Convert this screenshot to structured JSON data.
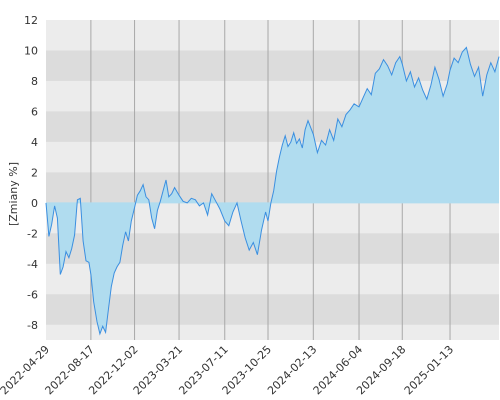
{
  "chart_data": {
    "type": "area",
    "title": "",
    "xlabel": "",
    "ylabel": "[Zmiany %]",
    "ylim": [
      -9,
      12
    ],
    "y_ticks": [
      -8,
      -6,
      -4,
      -2,
      0,
      2,
      4,
      6,
      8,
      10,
      12
    ],
    "x_tick_labels": [
      "2022-04-29",
      "2022-08-17",
      "2022-12-02",
      "2023-03-21",
      "2023-07-11",
      "2023-10-25",
      "2024-02-13",
      "2024-06-04",
      "2024-09-18",
      "2025-01-13"
    ],
    "grid": "vertical lines at x ticks, alternating horizontal bands",
    "colors": {
      "line": "#3b8fe0",
      "fill": "#b0dcef",
      "band_dark": "#dcdcdc",
      "band_light": "#ececec",
      "grid": "#a8a8a8"
    },
    "series": [
      {
        "x": [
          "2022-04-29",
          "2022-05-06",
          "2022-05-13",
          "2022-05-20",
          "2022-05-27",
          "2022-06-03",
          "2022-06-10",
          "2022-06-17",
          "2022-06-24",
          "2022-07-01",
          "2022-07-08",
          "2022-07-15",
          "2022-07-22",
          "2022-07-29",
          "2022-08-05",
          "2022-08-12",
          "2022-08-17",
          "2022-08-24",
          "2022-09-01",
          "2022-09-08",
          "2022-09-15",
          "2022-09-22",
          "2022-09-29",
          "2022-10-06",
          "2022-10-13",
          "2022-10-20",
          "2022-10-27",
          "2022-11-03",
          "2022-11-10",
          "2022-11-17",
          "2022-11-24",
          "2022-12-02",
          "2022-12-09",
          "2022-12-16",
          "2022-12-23",
          "2022-12-30",
          "2023-01-06",
          "2023-01-13",
          "2023-01-20",
          "2023-01-27",
          "2023-02-03",
          "2023-02-10",
          "2023-02-17",
          "2023-02-24",
          "2023-03-03",
          "2023-03-10",
          "2023-03-21",
          "2023-03-31",
          "2023-04-10",
          "2023-04-20",
          "2023-04-30",
          "2023-05-10",
          "2023-05-20",
          "2023-05-30",
          "2023-06-09",
          "2023-06-19",
          "2023-06-29",
          "2023-07-11",
          "2023-07-21",
          "2023-07-31",
          "2023-08-10",
          "2023-08-20",
          "2023-08-30",
          "2023-09-09",
          "2023-09-19",
          "2023-09-29",
          "2023-10-09",
          "2023-10-19",
          "2023-10-25",
          "2023-11-01",
          "2023-11-08",
          "2023-11-15",
          "2023-11-22",
          "2023-11-29",
          "2023-12-06",
          "2023-12-13",
          "2023-12-20",
          "2023-12-27",
          "2024-01-03",
          "2024-01-10",
          "2024-01-17",
          "2024-01-24",
          "2024-01-31",
          "2024-02-13",
          "2024-02-23",
          "2024-03-04",
          "2024-03-14",
          "2024-03-24",
          "2024-04-03",
          "2024-04-13",
          "2024-04-23",
          "2024-05-03",
          "2024-05-13",
          "2024-05-23",
          "2024-06-04",
          "2024-06-14",
          "2024-06-24",
          "2024-07-04",
          "2024-07-14",
          "2024-07-24",
          "2024-08-03",
          "2024-08-13",
          "2024-08-23",
          "2024-09-02",
          "2024-09-12",
          "2024-09-18",
          "2024-09-28",
          "2024-10-08",
          "2024-10-18",
          "2024-10-28",
          "2024-11-07",
          "2024-11-17",
          "2024-11-27",
          "2024-12-07",
          "2024-12-17",
          "2024-12-27",
          "2025-01-06",
          "2025-01-13",
          "2025-01-23",
          "2025-02-02",
          "2025-02-12",
          "2025-02-22",
          "2025-03-04",
          "2025-03-14",
          "2025-03-24",
          "2025-04-03",
          "2025-04-13",
          "2025-04-23",
          "2025-05-03",
          "2025-05-13"
        ],
        "values": [
          0.0,
          -2.2,
          -1.4,
          -0.2,
          -1.0,
          -4.7,
          -4.2,
          -3.2,
          -3.6,
          -3.0,
          -2.1,
          0.2,
          0.3,
          -2.5,
          -3.8,
          -3.9,
          -4.7,
          -6.5,
          -7.8,
          -8.6,
          -8.1,
          -8.5,
          -7.0,
          -5.5,
          -4.6,
          -4.2,
          -3.9,
          -2.8,
          -1.9,
          -2.5,
          -1.2,
          -0.3,
          0.5,
          0.8,
          1.2,
          0.4,
          0.2,
          -1.0,
          -1.7,
          -0.5,
          0.1,
          0.8,
          1.5,
          0.4,
          0.6,
          1.0,
          0.5,
          0.1,
          0.0,
          0.3,
          0.2,
          -0.2,
          0.0,
          -0.8,
          0.6,
          0.1,
          -0.4,
          -1.2,
          -1.5,
          -0.6,
          0.0,
          -1.2,
          -2.3,
          -3.1,
          -2.6,
          -3.4,
          -1.8,
          -0.6,
          -1.2,
          0.0,
          0.8,
          2.1,
          3.0,
          3.8,
          4.4,
          3.7,
          4.0,
          4.6,
          3.9,
          4.2,
          3.6,
          4.8,
          5.4,
          4.5,
          3.3,
          4.1,
          3.8,
          4.8,
          4.1,
          5.5,
          5.0,
          5.8,
          6.1,
          6.5,
          6.3,
          6.9,
          7.5,
          7.1,
          8.5,
          8.8,
          9.4,
          9.0,
          8.4,
          9.2,
          9.6,
          9.1,
          8.0,
          8.6,
          7.6,
          8.2,
          7.4,
          6.8,
          7.7,
          8.9,
          8.1,
          7.0,
          7.8,
          8.7,
          9.5,
          9.2,
          9.9,
          10.2,
          9.1,
          8.3,
          8.9,
          7.0,
          8.4,
          9.2,
          8.6,
          9.6
        ]
      }
    ]
  }
}
